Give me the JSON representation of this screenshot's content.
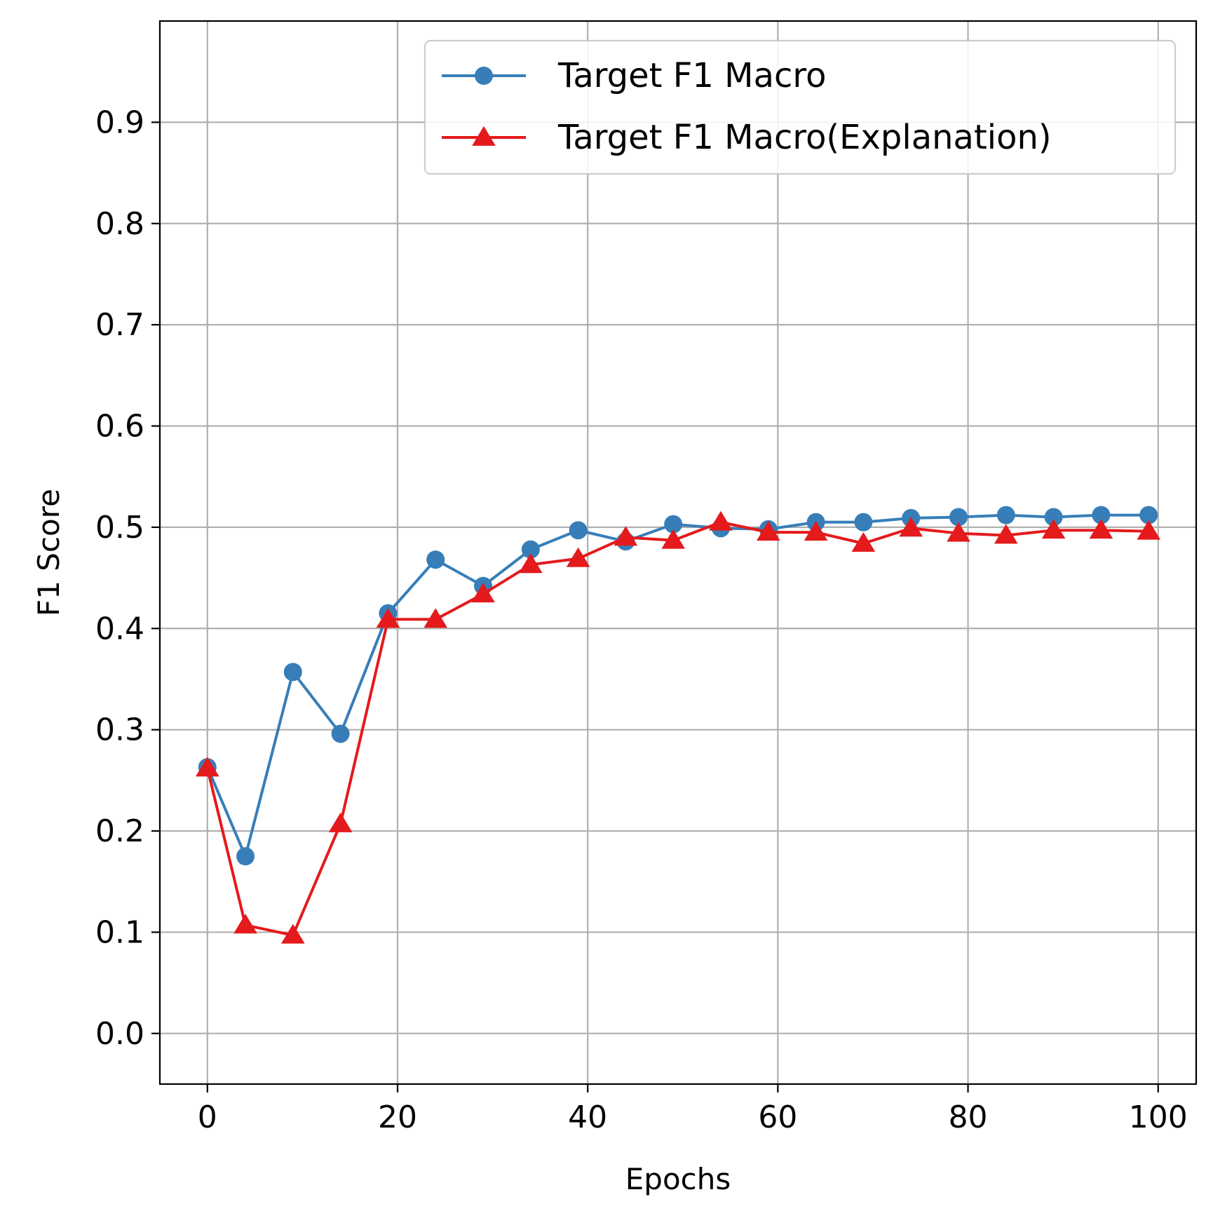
{
  "chart_data": {
    "type": "line",
    "title": "",
    "xlabel": "Epochs",
    "ylabel": "F1 Score",
    "xlim": [
      -5,
      104
    ],
    "ylim": [
      -0.05,
      1.0
    ],
    "xticks": [
      0,
      20,
      40,
      60,
      80,
      100
    ],
    "xtick_labels": [
      "0",
      "20",
      "40",
      "60",
      "80",
      "100"
    ],
    "yticks": [
      0.0,
      0.1,
      0.2,
      0.3,
      0.4,
      0.5,
      0.6,
      0.7,
      0.8,
      0.9
    ],
    "ytick_labels": [
      "0.0",
      "0.1",
      "0.2",
      "0.3",
      "0.4",
      "0.5",
      "0.6",
      "0.7",
      "0.8",
      "0.9"
    ],
    "grid": true,
    "legend_position": "top-right",
    "x": [
      0,
      4,
      9,
      14,
      19,
      24,
      29,
      34,
      39,
      44,
      49,
      54,
      59,
      64,
      69,
      74,
      79,
      84,
      89,
      94,
      99
    ],
    "series": [
      {
        "name": "Target F1 Macro",
        "color": "#377eb8",
        "marker": "circle",
        "values": [
          0.263,
          0.175,
          0.357,
          0.296,
          0.415,
          0.468,
          0.442,
          0.478,
          0.497,
          0.486,
          0.503,
          0.499,
          0.498,
          0.505,
          0.505,
          0.509,
          0.51,
          0.512,
          0.51,
          0.512,
          0.512
        ]
      },
      {
        "name": "Target F1 Macro(Explanation)",
        "color": "#e41a1c",
        "marker": "triangle",
        "values": [
          0.262,
          0.107,
          0.097,
          0.207,
          0.409,
          0.409,
          0.434,
          0.463,
          0.469,
          0.49,
          0.487,
          0.505,
          0.495,
          0.495,
          0.484,
          0.499,
          0.494,
          0.492,
          0.497,
          0.497,
          0.496
        ]
      }
    ]
  }
}
